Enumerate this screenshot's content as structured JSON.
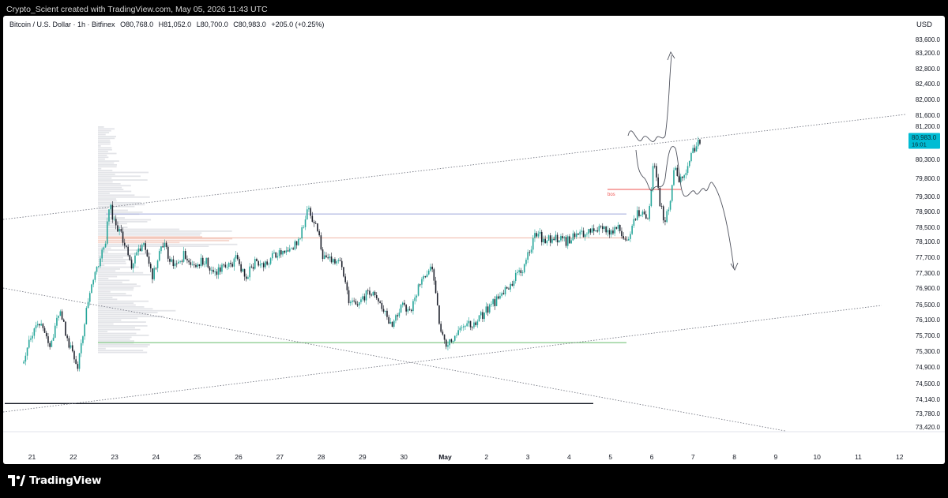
{
  "header": {
    "caption": "Crypto_Scient created with TradingView.com, May 05, 2026 11:43 UTC"
  },
  "legend": {
    "symbol": "Bitcoin / U.S. Dollar · 1h · Bitfinex",
    "open": "O80,768.0",
    "high": "H81,052.0",
    "low": "L80,700.0",
    "close": "C80,983.0",
    "change": "+205.0 (+0.25%)"
  },
  "price_axis": {
    "currency": "USD",
    "ticks": [
      "83,600.0",
      "83,200.0",
      "82,800.0",
      "82,400.0",
      "82,000.0",
      "81,600.0",
      "81,200.0",
      "80,300.0",
      "79,800.0",
      "79,300.0",
      "78,900.0",
      "78,500.0",
      "78,100.0",
      "77,700.0",
      "77,300.0",
      "76,900.0",
      "76,500.0",
      "76,100.0",
      "75,700.0",
      "75,300.0",
      "74,900.0",
      "74,500.0",
      "74,140.0",
      "73,780.0",
      "73,420.0"
    ],
    "last_price_label": "80,983.0",
    "countdown_label": "16:01"
  },
  "time_axis": {
    "ticks": [
      "21",
      "22",
      "23",
      "24",
      "25",
      "26",
      "27",
      "28",
      "29",
      "30",
      "May",
      "2",
      "3",
      "4",
      "5",
      "6",
      "7",
      "8",
      "9",
      "10",
      "11",
      "12"
    ]
  },
  "annotation": {
    "text": "bos"
  },
  "colors": {
    "up": "#26a69a",
    "down": "#1e222d",
    "price_label_bg": "#00bcd4",
    "blue_level": "#9fa8da",
    "orange_level": "#f0b4a4",
    "green_level": "#66bb6a",
    "red_level": "#ef5350"
  },
  "footer": {
    "brand": "TradingView"
  },
  "chart_data": {
    "type": "candlestick",
    "symbol": "BTCUSD",
    "interval": "1h",
    "exchange": "Bitfinex",
    "currency": "USD",
    "last": {
      "open": 80768.0,
      "high": 81052.0,
      "low": 80700.0,
      "close": 80983.0,
      "change": 205.0,
      "change_pct": 0.25
    },
    "ylim": [
      73200,
      83900
    ],
    "price_path": [
      [
        "Apr 20 21:00",
        75100
      ],
      [
        "Apr 21 00:00",
        75650
      ],
      [
        "Apr 21 06:00",
        76150
      ],
      [
        "Apr 21 12:00",
        75500
      ],
      [
        "Apr 21 18:00",
        76500
      ],
      [
        "Apr 22 00:00",
        75500
      ],
      [
        "Apr 22 04:00",
        74920
      ],
      [
        "Apr 22 08:00",
        76150
      ],
      [
        "Apr 22 14:00",
        77500
      ],
      [
        "Apr 22 20:00",
        78200
      ],
      [
        "Apr 22 23:00",
        79350
      ],
      [
        "Apr 23 02:00",
        78700
      ],
      [
        "Apr 23 06:00",
        78450
      ],
      [
        "Apr 23 12:00",
        77650
      ],
      [
        "Apr 23 18:00",
        78350
      ],
      [
        "Apr 24 00:00",
        77400
      ],
      [
        "Apr 24 06:00",
        78300
      ],
      [
        "Apr 24 12:00",
        77600
      ],
      [
        "Apr 24 18:00",
        77950
      ],
      [
        "Apr 25 00:00",
        77750
      ],
      [
        "Apr 25 06:00",
        77800
      ],
      [
        "Apr 25 12:00",
        77550
      ],
      [
        "Apr 25 18:00",
        77650
      ],
      [
        "Apr 26 00:00",
        77850
      ],
      [
        "Apr 26 06:00",
        77400
      ],
      [
        "Apr 26 12:00",
        77800
      ],
      [
        "Apr 26 18:00",
        77700
      ],
      [
        "Apr 27 00:00",
        78050
      ],
      [
        "Apr 27 06:00",
        77950
      ],
      [
        "Apr 27 12:00",
        78300
      ],
      [
        "Apr 27 18:00",
        79200
      ],
      [
        "Apr 28 00:00",
        78600
      ],
      [
        "Apr 28 02:00",
        77950
      ],
      [
        "Apr 28 06:00",
        77800
      ],
      [
        "Apr 28 12:00",
        77900
      ],
      [
        "Apr 28 18:00",
        76700
      ],
      [
        "Apr 29 00:00",
        76750
      ],
      [
        "Apr 29 06:00",
        77000
      ],
      [
        "Apr 29 12:00",
        76750
      ],
      [
        "Apr 29 18:00",
        76100
      ],
      [
        "Apr 30 00:00",
        76600
      ],
      [
        "Apr 30 06:00",
        76500
      ],
      [
        "Apr 30 12:00",
        77350
      ],
      [
        "Apr 30 18:00",
        77600
      ],
      [
        "Apr 30 22:00",
        76300
      ],
      [
        "May 01 02:00",
        75500
      ],
      [
        "May 01 06:00",
        75700
      ],
      [
        "May 01 12:00",
        76150
      ],
      [
        "May 01 18:00",
        76150
      ],
      [
        "May 02 00:00",
        76400
      ],
      [
        "May 02 06:00",
        76700
      ],
      [
        "May 02 12:00",
        76950
      ],
      [
        "May 02 18:00",
        77350
      ],
      [
        "May 03 00:00",
        77700
      ],
      [
        "May 03 06:00",
        78550
      ],
      [
        "May 03 12:00",
        78350
      ],
      [
        "May 03 18:00",
        78450
      ],
      [
        "May 04 00:00",
        78300
      ],
      [
        "May 04 06:00",
        78500
      ],
      [
        "May 04 12:00",
        78500
      ],
      [
        "May 04 18:00",
        78700
      ],
      [
        "May 05 00:00",
        78550
      ],
      [
        "May 05 06:00",
        78650
      ],
      [
        "May 05 12:00",
        78400
      ],
      [
        "May 05 18:00",
        79100
      ],
      [
        "May 06 00:00",
        79000
      ],
      [
        "May 06 03:00",
        80500
      ],
      [
        "May 06 06:00",
        79500
      ],
      [
        "May 06 09:00",
        78800
      ],
      [
        "May 06 12:00",
        79300
      ],
      [
        "May 06 15:00",
        80300
      ],
      [
        "May 06 18:00",
        79900
      ],
      [
        "May 06 21:00",
        80050
      ],
      [
        "May 07 00:00",
        80600
      ],
      [
        "May 07 03:00",
        80800
      ],
      [
        "May 07 06:00",
        80983
      ]
    ],
    "levels": [
      {
        "name": "blue",
        "price": 79050
      },
      {
        "name": "orange",
        "price": 78420
      },
      {
        "name": "green",
        "price": 75650
      },
      {
        "name": "black",
        "price": 74040
      },
      {
        "name": "red (bos)",
        "price": 79700
      }
    ]
  }
}
